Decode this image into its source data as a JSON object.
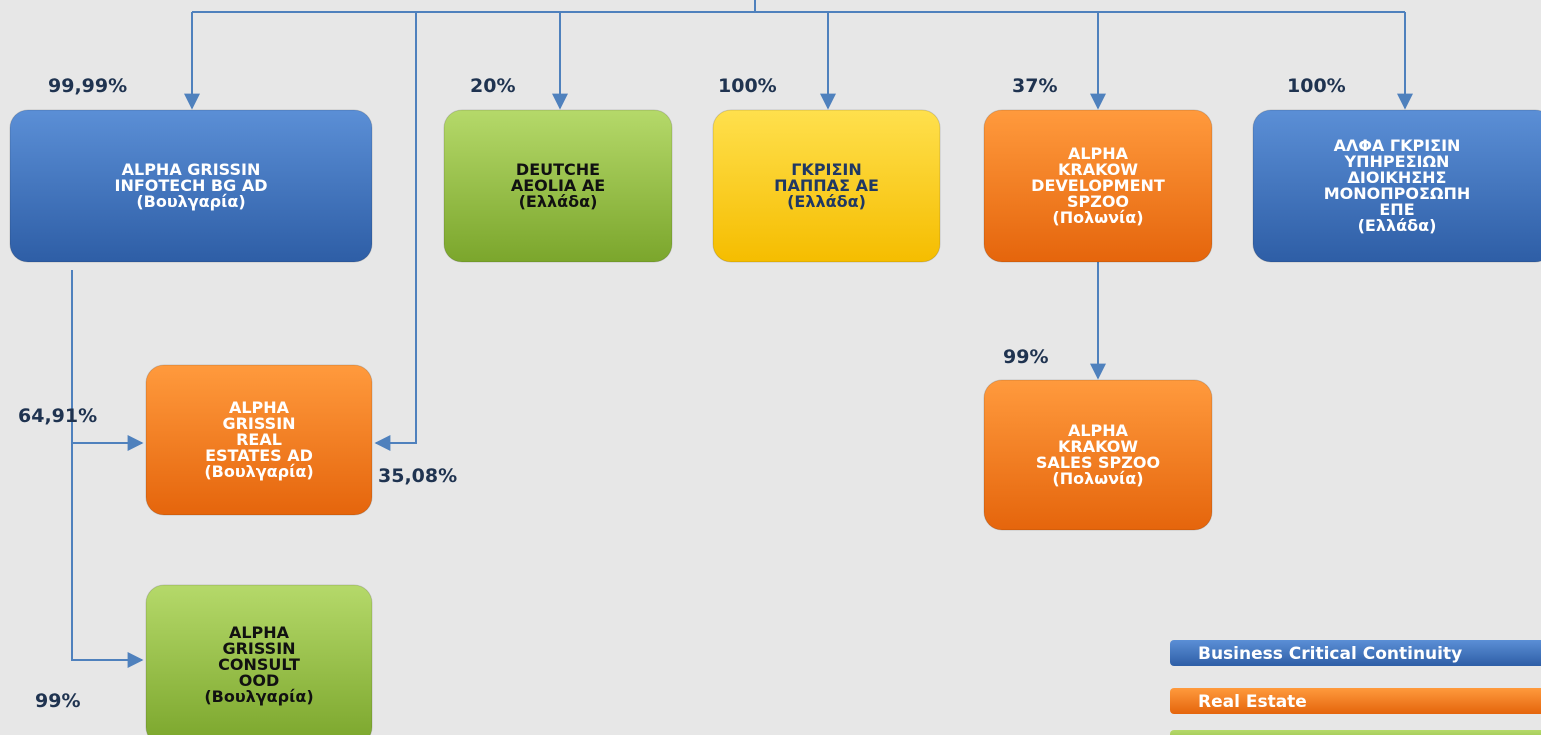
{
  "nodes": [
    {
      "lines": [
        "ALPHA GRISSIN",
        "INFOTECH BG AD",
        "(Βουλγαρία)"
      ]
    },
    {
      "lines": [
        "DEUTCHE",
        "AEOLIA AE",
        "(Ελλάδα)"
      ]
    },
    {
      "lines": [
        "ΓΚΡΙΣΙΝ",
        "ΠΑΠΠΑΣ ΑΕ",
        "(Ελλάδα)"
      ]
    },
    {
      "lines": [
        "ALPHA",
        "KRAKOW",
        "DEVELOPMENT",
        "SPZOO",
        "(Πολωνία)"
      ]
    },
    {
      "lines": [
        "ΑΛΦΑ ΓΚΡΙΣΙΝ",
        "ΥΠΗΡΕΣΙΩΝ",
        "ΔΙΟΙΚΗΣΗΣ",
        "ΜΟΝΟΠΡΟΣΩΠΗ",
        "ΕΠΕ",
        "(Ελλάδα)"
      ]
    },
    {
      "lines": [
        "ALPHA",
        "GRISSIN",
        "REAL",
        "ESTATES AD",
        "(Βουλγαρία)"
      ]
    },
    {
      "lines": [
        "ALPHA",
        "KRAKOW",
        "SALES SPZOO",
        "(Πολωνία)"
      ]
    },
    {
      "lines": [
        "ALPHA",
        "GRISSIN",
        "CONSULT",
        "OOD",
        "(Βουλγαρία)"
      ]
    }
  ],
  "percentages": [
    "99,99%",
    "20%",
    "100%",
    "37%",
    "100%",
    "64,91%",
    "35,08%",
    "99%",
    "99%"
  ],
  "legend": [
    "Business Critical Continuity",
    "Real Estate"
  ]
}
